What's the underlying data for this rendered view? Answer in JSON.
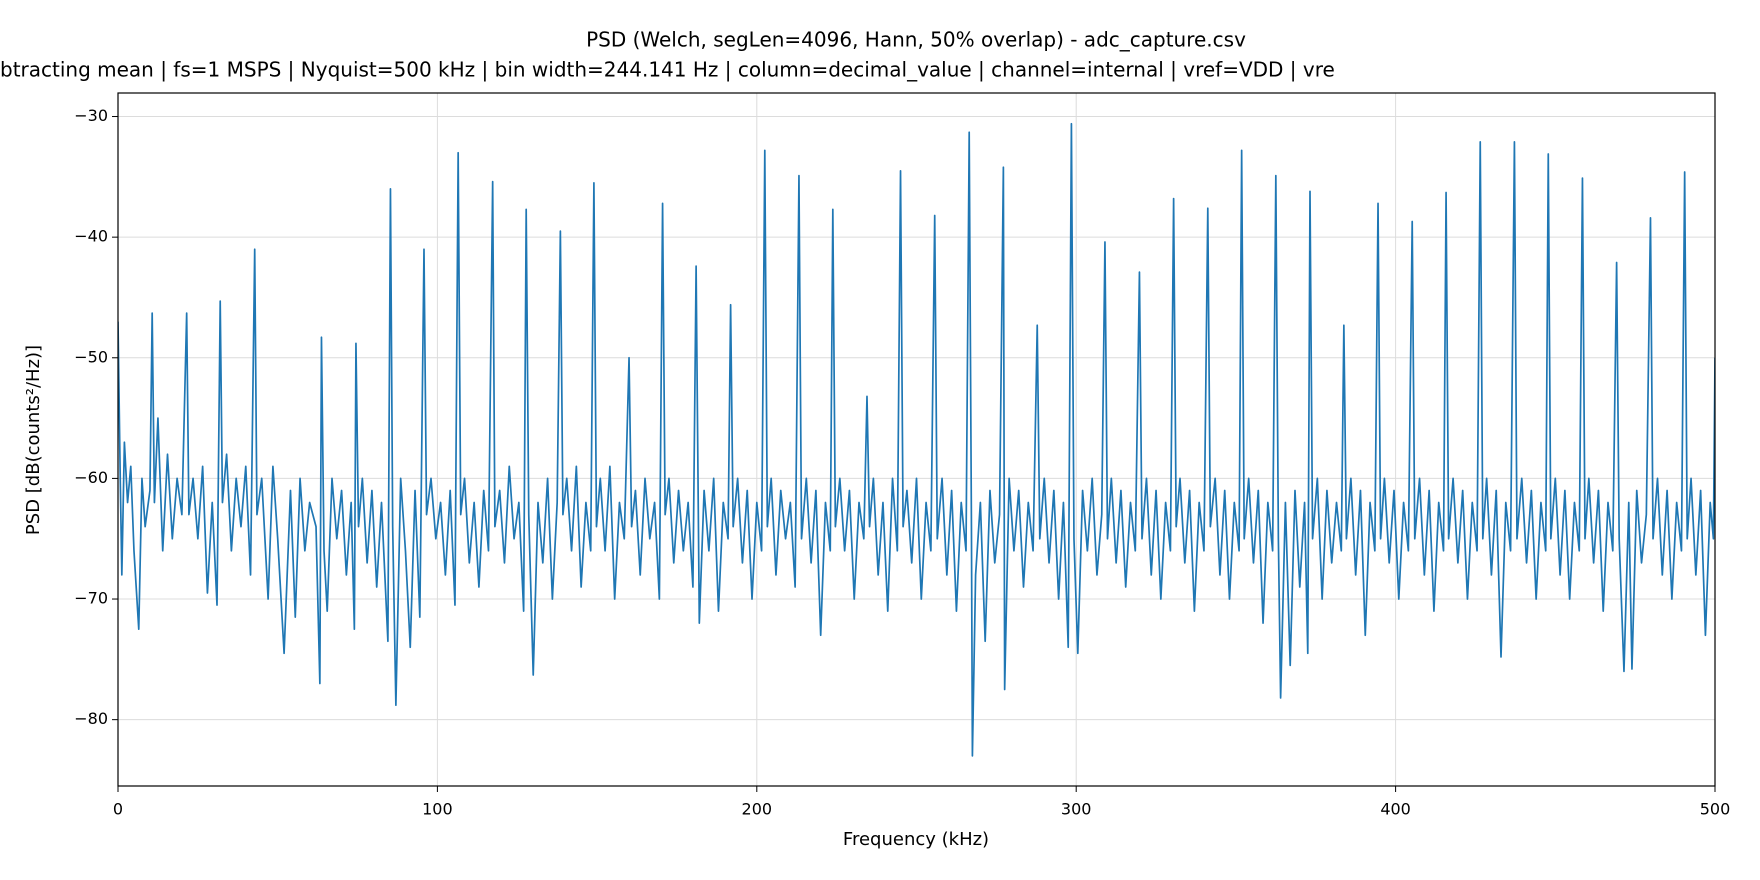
{
  "chart_data": {
    "type": "line",
    "title": "PSD (Welch, segLen=4096, Hann, 50% overlap) - adc_capture.csv",
    "subtitle": "btracting mean | fs=1 MSPS | Nyquist=500 kHz | bin width=244.141 Hz | column=decimal_value | channel=internal | vref=VDD | vre",
    "x_label": "Frequency (kHz)",
    "y_label": "PSD [dB(counts²/Hz)]",
    "color": "#1f77b4",
    "grid": true,
    "xlim": [
      0,
      500
    ],
    "ylim": [
      -85.5,
      -28.05
    ],
    "xticks": [
      0,
      100,
      200,
      300,
      400,
      500
    ],
    "yticks": [
      {
        "value": -80,
        "label": "−80"
      },
      {
        "value": -70,
        "label": "−70"
      },
      {
        "value": -60,
        "label": "−60"
      },
      {
        "value": -50,
        "label": "−50"
      },
      {
        "value": -40,
        "label": "−40"
      },
      {
        "value": -30,
        "label": "−30"
      }
    ],
    "x": [
      0,
      0.7,
      1.2,
      2,
      3,
      4,
      5,
      6.5,
      7.5,
      8.5,
      10,
      10.7,
      11.4,
      12.5,
      14,
      15.5,
      17,
      18.5,
      20,
      21.5,
      22.2,
      23.5,
      25,
      26.5,
      28,
      29.5,
      31,
      32,
      32.7,
      34,
      35.5,
      37,
      38.5,
      40,
      41.5,
      42.8,
      43.5,
      45,
      47,
      48.5,
      50,
      52,
      54,
      55.5,
      57,
      58.5,
      60,
      62,
      63.2,
      63.7,
      64.5,
      65.5,
      67,
      68.5,
      70,
      71.5,
      73,
      74,
      74.5,
      75.3,
      76.5,
      78,
      79.5,
      81,
      82.5,
      84.5,
      85.3,
      86,
      87,
      88.5,
      90,
      91.5,
      93,
      94.5,
      95.8,
      96.6,
      98,
      99.5,
      101,
      102.5,
      104,
      105.5,
      106.5,
      107.3,
      108.5,
      110,
      111.5,
      113,
      114.5,
      116,
      117.3,
      118,
      119.5,
      121,
      122.5,
      124,
      125.5,
      127,
      127.8,
      128.6,
      130,
      131.5,
      133,
      134.5,
      136,
      137.5,
      138.5,
      139.3,
      140.5,
      142,
      143.5,
      145,
      146.5,
      148,
      149,
      149.8,
      151,
      152.5,
      154,
      155.5,
      157,
      158.5,
      160,
      160.8,
      162,
      163.5,
      165,
      166.5,
      168,
      169.5,
      170.5,
      171.3,
      172.5,
      174,
      175.5,
      177,
      178.5,
      180,
      181,
      182,
      183.5,
      185,
      186.5,
      188,
      189.5,
      191,
      191.8,
      192.6,
      194,
      195.5,
      197,
      198.5,
      200,
      201.5,
      202.5,
      203.3,
      204.5,
      206,
      207.5,
      209,
      210.5,
      212,
      213.2,
      214,
      215.5,
      217,
      218.5,
      220,
      221.5,
      223,
      223.8,
      224.6,
      226,
      227.5,
      229,
      230.5,
      232,
      233.5,
      234.5,
      235.3,
      236.5,
      238,
      239.5,
      241,
      242.5,
      244,
      245,
      245.8,
      247,
      248.5,
      250,
      251.5,
      253,
      254.5,
      255.7,
      256.5,
      258,
      259.5,
      261,
      262.5,
      264,
      265.5,
      266.5,
      267.2,
      267.5,
      268.5,
      270,
      271.5,
      273,
      274.5,
      276,
      277.2,
      277.6,
      279,
      280.5,
      282,
      283.5,
      285,
      286.5,
      287.8,
      288.6,
      290,
      291.5,
      293,
      294.5,
      296,
      297.5,
      298.5,
      299.3,
      300.5,
      302,
      303.5,
      305,
      306.5,
      308,
      309,
      309.8,
      311,
      312.5,
      314,
      315.5,
      317,
      318.5,
      319.8,
      320.6,
      322,
      323.5,
      325,
      326.5,
      328,
      329.5,
      330.5,
      331.3,
      332.5,
      334,
      335.5,
      337,
      338.5,
      340,
      341.2,
      342,
      343.5,
      345,
      346.5,
      348,
      349.5,
      351,
      351.8,
      352.6,
      354,
      355.5,
      357,
      358.5,
      360,
      361.5,
      362.5,
      363.3,
      364,
      365.5,
      367,
      368.5,
      370,
      371.5,
      372.5,
      373.2,
      374,
      375.5,
      377,
      378.5,
      380,
      381.5,
      383,
      383.8,
      384.6,
      386,
      387.5,
      389,
      390.5,
      392,
      393.5,
      394.5,
      395.3,
      396.5,
      398,
      399.5,
      401,
      402.5,
      404,
      405.2,
      406,
      407.5,
      409,
      410.5,
      412,
      413.5,
      415,
      415.8,
      416.6,
      418,
      419.5,
      421,
      422.5,
      424,
      425.5,
      426.5,
      427.3,
      428.5,
      430,
      431.5,
      433,
      434.5,
      436,
      437.2,
      438,
      439.5,
      441,
      442.5,
      444,
      445.5,
      447,
      447.8,
      448.6,
      450,
      451.5,
      453,
      454.5,
      456,
      457.5,
      458.5,
      459.3,
      460.5,
      462,
      463.5,
      465,
      466.5,
      468,
      469.2,
      470,
      471.5,
      473,
      474,
      475.5,
      477,
      478.5,
      479.8,
      480.6,
      482,
      483.5,
      485,
      486.5,
      488,
      489.5,
      490.5,
      491.3,
      492.5,
      494,
      495.5,
      497,
      498.5,
      499.5,
      500
    ],
    "values": [
      -47,
      -60,
      -68,
      -57,
      -62,
      -59,
      -66,
      -72.5,
      -60,
      -64,
      -61,
      -46.3,
      -62,
      -55,
      -66,
      -58,
      -65,
      -60,
      -63,
      -46.3,
      -63,
      -60,
      -65,
      -59,
      -69.5,
      -62,
      -70.5,
      -45.3,
      -62,
      -58,
      -66,
      -60,
      -64,
      -59,
      -68,
      -41,
      -63,
      -60,
      -70,
      -59,
      -65,
      -74.5,
      -61,
      -71.5,
      -60,
      -66,
      -62,
      -64,
      -77,
      -48.3,
      -66,
      -71,
      -60,
      -65,
      -61,
      -68,
      -62,
      -72.5,
      -48.8,
      -64,
      -60,
      -67,
      -61,
      -69,
      -62,
      -73.5,
      -36,
      -64,
      -78.8,
      -60,
      -66,
      -74,
      -61,
      -71.5,
      -41,
      -63,
      -60,
      -65,
      -62,
      -68,
      -61,
      -70.5,
      -33,
      -63,
      -60,
      -67,
      -62,
      -69,
      -61,
      -66,
      -35.4,
      -64,
      -61,
      -67,
      -59,
      -65,
      -62,
      -71,
      -37.7,
      -63,
      -76.3,
      -62,
      -67,
      -60,
      -70,
      -62,
      -39.5,
      -63,
      -60,
      -66,
      -59,
      -69,
      -62,
      -66,
      -35.5,
      -64,
      -60,
      -66,
      -59,
      -70,
      -62,
      -65,
      -50,
      -64,
      -61,
      -68,
      -60,
      -65,
      -62,
      -70,
      -37.2,
      -63,
      -60,
      -67,
      -61,
      -66,
      -62,
      -69,
      -42.4,
      -72,
      -61,
      -66,
      -60,
      -71,
      -62,
      -65,
      -45.6,
      -64,
      -60,
      -67,
      -61,
      -70,
      -62,
      -66,
      -32.8,
      -64,
      -60,
      -68,
      -61,
      -65,
      -62,
      -69,
      -34.9,
      -65,
      -60,
      -67,
      -61,
      -73,
      -62,
      -66,
      -37.7,
      -64,
      -60,
      -66,
      -61,
      -70,
      -62,
      -65,
      -53.2,
      -64,
      -60,
      -68,
      -62,
      -71,
      -60,
      -66,
      -34.5,
      -64,
      -61,
      -67,
      -60,
      -70,
      -62,
      -66,
      -38.2,
      -65,
      -60,
      -68,
      -61,
      -71,
      -62,
      -66,
      -31.3,
      -64,
      -83,
      -68,
      -62,
      -73.5,
      -61,
      -67,
      -63,
      -34.2,
      -77.5,
      -60,
      -66,
      -61,
      -69,
      -62,
      -66,
      -47.3,
      -65,
      -60,
      -67,
      -61,
      -70,
      -62,
      -74,
      -30.6,
      -65,
      -74.5,
      -61,
      -66,
      -60,
      -68,
      -63,
      -40.4,
      -65,
      -60,
      -67,
      -61,
      -69,
      -62,
      -66,
      -42.9,
      -65,
      -60,
      -68,
      -61,
      -70,
      -62,
      -66,
      -36.8,
      -64,
      -60,
      -67,
      -61,
      -71,
      -62,
      -66,
      -37.6,
      -64,
      -60,
      -68,
      -61,
      -70,
      -62,
      -66,
      -32.8,
      -65,
      -60,
      -67,
      -61,
      -72,
      -62,
      -66,
      -34.9,
      -65,
      -78.2,
      -62,
      -75.5,
      -61,
      -69,
      -62,
      -74.5,
      -36.2,
      -65,
      -60,
      -70,
      -61,
      -67,
      -62,
      -66,
      -47.3,
      -65,
      -60,
      -68,
      -61,
      -73,
      -62,
      -66,
      -37.2,
      -65,
      -60,
      -67,
      -61,
      -70,
      -62,
      -66,
      -38.7,
      -65,
      -60,
      -68,
      -61,
      -71,
      -62,
      -66,
      -36.3,
      -65,
      -60,
      -67,
      -61,
      -70,
      -62,
      -66,
      -32.1,
      -65,
      -60,
      -68,
      -61,
      -74.8,
      -62,
      -66,
      -32.1,
      -65,
      -60,
      -67,
      -61,
      -70,
      -62,
      -66,
      -33.1,
      -65,
      -60,
      -68,
      -61,
      -70,
      -62,
      -66,
      -35.1,
      -65,
      -60,
      -67,
      -61,
      -71,
      -62,
      -66,
      -42.1,
      -65,
      -76,
      -62,
      -75.8,
      -61,
      -67,
      -63,
      -38.4,
      -65,
      -60,
      -68,
      -61,
      -70,
      -62,
      -66,
      -34.6,
      -65,
      -60,
      -68,
      -61,
      -73,
      -62,
      -65,
      -50
    ]
  }
}
